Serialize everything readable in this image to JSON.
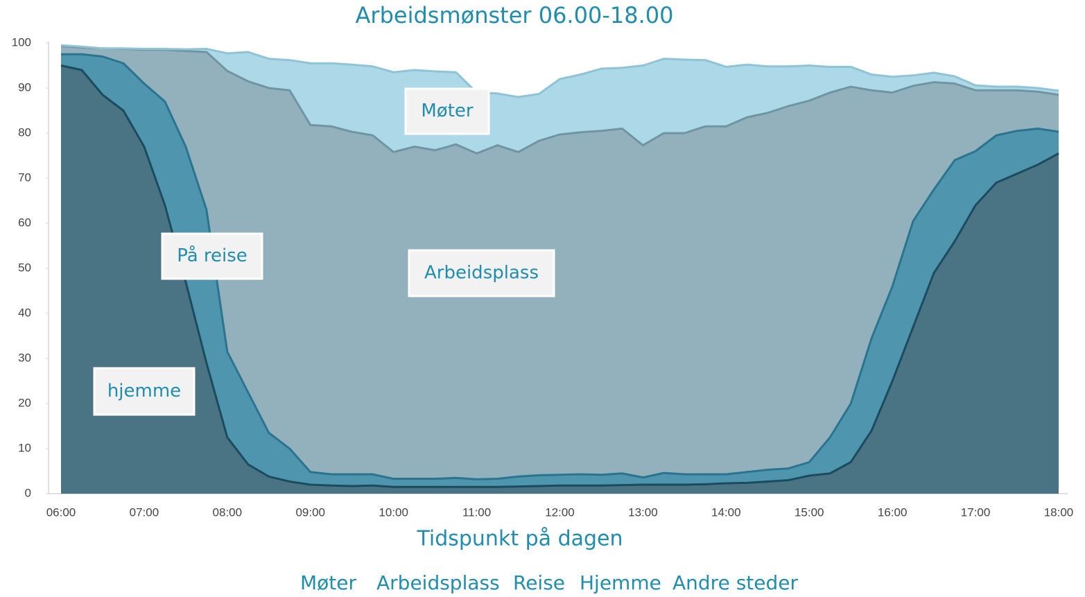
{
  "chart_data": {
    "type": "stacked_area",
    "title": "Arbeidsmønster 06.00-18.00",
    "x_label": "Tidspunkt på dagen",
    "categories": [
      "06:00",
      null,
      null,
      null,
      "07:00",
      null,
      null,
      null,
      "08:00",
      null,
      null,
      null,
      "09:00",
      null,
      null,
      null,
      "10:00",
      null,
      null,
      null,
      "11:00",
      null,
      null,
      null,
      "12:00",
      null,
      null,
      null,
      "13:00",
      null,
      null,
      null,
      "14:00",
      null,
      null,
      null,
      "15:00",
      null,
      null,
      null,
      "16:00",
      null,
      null,
      null,
      "17:00",
      null,
      null,
      null,
      "18:00"
    ],
    "ylim": [
      0,
      100
    ],
    "yticks": [
      0,
      10,
      20,
      30,
      40,
      50,
      60,
      70,
      80,
      90,
      100
    ],
    "grid": false,
    "series": [
      {
        "name": "Møter",
        "color": "#add8e7",
        "values": [
          0.2,
          0.2,
          0,
          0.1,
          0.2,
          0.2,
          0.4,
          0.7,
          3.9,
          6.5,
          6.5,
          6.7,
          13.7,
          14,
          14.9,
          15.3,
          17.7,
          17,
          17.5,
          16,
          13.5,
          11.5,
          12.2,
          10.4,
          12.3,
          12.8,
          13.8,
          13.5,
          17.7,
          16.5,
          16.3,
          14.7,
          13.2,
          11.7,
          10.3,
          8.8,
          7.8,
          5.7,
          4.4,
          3.5,
          3.5,
          2.3,
          2.1,
          1.6,
          1.1,
          0.8,
          0.8,
          0.8,
          0.9
        ]
      },
      {
        "name": "Arbeidsplass",
        "color": "#93b1bc",
        "values": [
          1.8,
          1.5,
          1.8,
          3.2,
          7.5,
          11.5,
          21.2,
          35,
          62.3,
          69,
          76.5,
          79.5,
          77,
          77.2,
          76,
          75.2,
          72.5,
          73.7,
          72.9,
          74,
          72.3,
          74,
          72,
          74.2,
          75.5,
          75.9,
          76.3,
          76.5,
          73.7,
          75.4,
          75.7,
          77.2,
          77.2,
          78.7,
          79.2,
          80.4,
          80.2,
          76.5,
          70.3,
          55,
          43,
          30,
          23.8,
          17,
          13.5,
          10,
          9,
          8.2,
          8.2
        ]
      },
      {
        "name": "Reise",
        "color": "#4e95ad",
        "values": [
          2.5,
          3.5,
          8.5,
          10.5,
          14,
          23,
          30,
          34,
          19,
          16,
          9.7,
          7.3,
          2.8,
          2.5,
          2.6,
          2.5,
          1.8,
          1.8,
          1.8,
          2,
          1.7,
          1.8,
          2.2,
          2.4,
          2.4,
          2.5,
          2.4,
          2.6,
          1.6,
          2.6,
          2.3,
          2.2,
          2,
          2.4,
          2.6,
          2.6,
          3,
          8,
          13,
          20.5,
          21,
          23.5,
          18.5,
          18,
          12,
          10.5,
          9.5,
          8,
          4.8
        ]
      },
      {
        "name": "Hjemme",
        "color": "#4a7383",
        "values": [
          95,
          94,
          88.5,
          85,
          77,
          64,
          47,
          29,
          12.5,
          6.5,
          3.8,
          2.7,
          2,
          1.8,
          1.7,
          1.8,
          1.5,
          1.5,
          1.5,
          1.5,
          1.5,
          1.5,
          1.6,
          1.7,
          1.8,
          1.8,
          1.8,
          1.9,
          2,
          2,
          2,
          2.1,
          2.3,
          2.4,
          2.7,
          3,
          4,
          4.5,
          7,
          14,
          25,
          37,
          49,
          56,
          64,
          69,
          71,
          73,
          75.5
        ]
      },
      {
        "name": "Andre steder",
        "color": "#ffffff",
        "values": [
          0.5,
          0.8,
          1.2,
          1.2,
          1.3,
          1.3,
          1.4,
          1.3,
          2.3,
          2,
          3.5,
          3.8,
          4.5,
          4.5,
          4.8,
          5.2,
          6.5,
          6,
          6.3,
          6.5,
          11,
          11.2,
          12,
          11.3,
          8,
          7,
          5.7,
          5.5,
          5,
          3.5,
          3.7,
          3.8,
          5.3,
          4.8,
          5.2,
          5.2,
          5,
          5.3,
          5.3,
          7,
          7.5,
          7.2,
          6.6,
          7.4,
          9.4,
          9.7,
          9.7,
          10,
          10.6
        ]
      }
    ],
    "annotations": [
      "Møter",
      "På reise",
      "Arbeidsplass",
      "hjemme"
    ]
  }
}
